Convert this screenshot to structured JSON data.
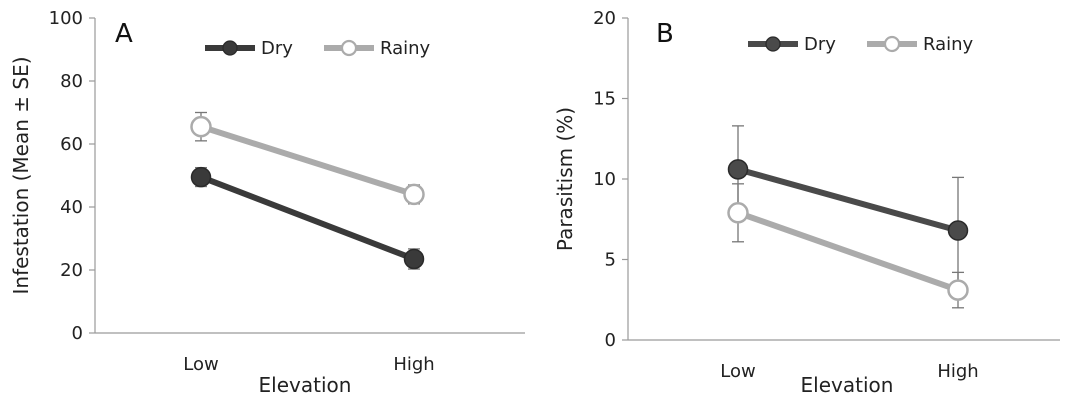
{
  "chart_data": [
    {
      "panel_label": "A",
      "type": "line",
      "categories": [
        "Low",
        "High"
      ],
      "xlabel": "Elevation",
      "ylabel": "Infestation (Mean ± SE)",
      "ylim": [
        0,
        100
      ],
      "yticks": [
        0,
        20,
        40,
        60,
        80,
        100
      ],
      "series": [
        {
          "name": "Dry",
          "values": [
            49.5,
            23.5
          ],
          "errors": [
            3.0,
            3.2
          ],
          "color": "#3a3a3a",
          "marker": "filled-circle"
        },
        {
          "name": "Rainy",
          "values": [
            65.5,
            44.0
          ],
          "errors": [
            4.5,
            3.0
          ],
          "color": "#ababab",
          "marker": "open-circle"
        }
      ],
      "legend_position": "top-center",
      "grid": false
    },
    {
      "panel_label": "B",
      "type": "line",
      "categories": [
        "Low",
        "High"
      ],
      "xlabel": "Elevation",
      "ylabel": "Parasitism (%)",
      "ylim": [
        0,
        20
      ],
      "yticks": [
        0,
        5,
        10,
        15,
        20
      ],
      "series": [
        {
          "name": "Dry",
          "values": [
            10.6,
            6.8
          ],
          "errors": [
            2.7,
            3.3
          ],
          "color": "#4a4a4a",
          "marker": "filled-circle"
        },
        {
          "name": "Rainy",
          "values": [
            7.9,
            3.1
          ],
          "errors": [
            1.8,
            1.1
          ],
          "color": "#ababab",
          "marker": "open-circle"
        }
      ],
      "legend_position": "top-center",
      "grid": false
    }
  ]
}
